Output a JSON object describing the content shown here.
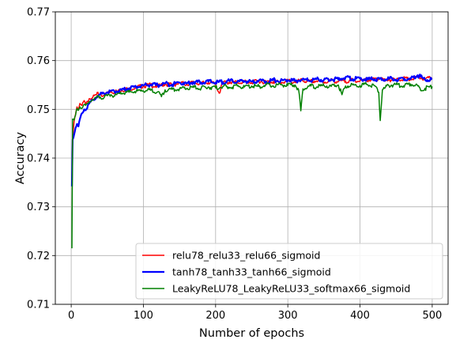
{
  "chart_data": {
    "type": "line",
    "xlabel": "Number of epochs",
    "ylabel": "Accuracy",
    "xlim": [
      -22,
      522
    ],
    "ylim": [
      0.71,
      0.77
    ],
    "xticks": [
      0,
      100,
      200,
      300,
      400,
      500
    ],
    "xtick_labels": [
      "0",
      "100",
      "200",
      "300",
      "400",
      "500"
    ],
    "yticks": [
      0.71,
      0.72,
      0.73,
      0.74,
      0.75,
      0.76,
      0.77
    ],
    "ytick_labels": [
      "0.71",
      "0.72",
      "0.73",
      "0.74",
      "0.75",
      "0.76",
      "0.77"
    ],
    "grid": true,
    "legend_position": "lower-right",
    "series": [
      {
        "name": "relu78_relu33_relu66_sigmoid",
        "color": "#ff0000",
        "line_width": 1.5,
        "points": [
          [
            1,
            0.7352
          ],
          [
            2,
            0.744
          ],
          [
            4,
            0.7475
          ],
          [
            6,
            0.749
          ],
          [
            8,
            0.7505
          ],
          [
            10,
            0.75
          ],
          [
            12,
            0.7512
          ],
          [
            15,
            0.7508
          ],
          [
            18,
            0.7518
          ],
          [
            20,
            0.751
          ],
          [
            25,
            0.7522
          ],
          [
            30,
            0.7525
          ],
          [
            35,
            0.753
          ],
          [
            40,
            0.7532
          ],
          [
            45,
            0.7528
          ],
          [
            50,
            0.7535
          ],
          [
            55,
            0.7538
          ],
          [
            60,
            0.7535
          ],
          [
            70,
            0.754
          ],
          [
            80,
            0.7542
          ],
          [
            90,
            0.7545
          ],
          [
            100,
            0.7548
          ],
          [
            110,
            0.755
          ],
          [
            120,
            0.7547
          ],
          [
            130,
            0.7552
          ],
          [
            140,
            0.755
          ],
          [
            150,
            0.7554
          ],
          [
            160,
            0.7552
          ],
          [
            170,
            0.7555
          ],
          [
            180,
            0.7553
          ],
          [
            190,
            0.7556
          ],
          [
            200,
            0.7552
          ],
          [
            205,
            0.7533
          ],
          [
            210,
            0.7554
          ],
          [
            220,
            0.7556
          ],
          [
            230,
            0.7555
          ],
          [
            240,
            0.7557
          ],
          [
            250,
            0.7555
          ],
          [
            260,
            0.7558
          ],
          [
            270,
            0.7556
          ],
          [
            280,
            0.7557
          ],
          [
            290,
            0.7555
          ],
          [
            300,
            0.7558
          ],
          [
            310,
            0.7556
          ],
          [
            320,
            0.7559
          ],
          [
            330,
            0.7557
          ],
          [
            340,
            0.7558
          ],
          [
            350,
            0.7556
          ],
          [
            360,
            0.7559
          ],
          [
            370,
            0.7557
          ],
          [
            380,
            0.7558
          ],
          [
            390,
            0.756
          ],
          [
            400,
            0.7558
          ],
          [
            410,
            0.756
          ],
          [
            420,
            0.7562
          ],
          [
            430,
            0.7565
          ],
          [
            435,
            0.7558
          ],
          [
            440,
            0.7561
          ],
          [
            450,
            0.756
          ],
          [
            460,
            0.7563
          ],
          [
            470,
            0.7561
          ],
          [
            480,
            0.7566
          ],
          [
            490,
            0.7562
          ],
          [
            500,
            0.7564
          ]
        ]
      },
      {
        "name": "tanh78_tanh33_tanh66_sigmoid",
        "color": "#0000ff",
        "line_width": 2.2,
        "points": [
          [
            1,
            0.7342
          ],
          [
            2,
            0.7438
          ],
          [
            4,
            0.7448
          ],
          [
            6,
            0.7462
          ],
          [
            8,
            0.747
          ],
          [
            10,
            0.7465
          ],
          [
            12,
            0.748
          ],
          [
            15,
            0.7492
          ],
          [
            18,
            0.75
          ],
          [
            20,
            0.7498
          ],
          [
            25,
            0.7512
          ],
          [
            30,
            0.752
          ],
          [
            35,
            0.7525
          ],
          [
            40,
            0.753
          ],
          [
            45,
            0.7533
          ],
          [
            50,
            0.7535
          ],
          [
            55,
            0.7538
          ],
          [
            60,
            0.7536
          ],
          [
            70,
            0.754
          ],
          [
            80,
            0.7543
          ],
          [
            90,
            0.7546
          ],
          [
            100,
            0.7549
          ],
          [
            110,
            0.7551
          ],
          [
            120,
            0.7549
          ],
          [
            130,
            0.7553
          ],
          [
            140,
            0.7551
          ],
          [
            150,
            0.7555
          ],
          [
            160,
            0.7553
          ],
          [
            170,
            0.7556
          ],
          [
            180,
            0.7555
          ],
          [
            190,
            0.7557
          ],
          [
            200,
            0.7555
          ],
          [
            210,
            0.7556
          ],
          [
            220,
            0.7558
          ],
          [
            230,
            0.7556
          ],
          [
            240,
            0.7558
          ],
          [
            250,
            0.7557
          ],
          [
            260,
            0.7559
          ],
          [
            270,
            0.7557
          ],
          [
            280,
            0.756
          ],
          [
            290,
            0.7558
          ],
          [
            300,
            0.756
          ],
          [
            310,
            0.7558
          ],
          [
            320,
            0.7561
          ],
          [
            330,
            0.7559
          ],
          [
            340,
            0.7562
          ],
          [
            350,
            0.756
          ],
          [
            360,
            0.7562
          ],
          [
            370,
            0.7561
          ],
          [
            380,
            0.7566
          ],
          [
            390,
            0.7562
          ],
          [
            400,
            0.7563
          ],
          [
            410,
            0.7561
          ],
          [
            420,
            0.7562
          ],
          [
            430,
            0.756
          ],
          [
            440,
            0.7563
          ],
          [
            450,
            0.7561
          ],
          [
            460,
            0.7564
          ],
          [
            470,
            0.7562
          ],
          [
            480,
            0.757
          ],
          [
            490,
            0.7561
          ],
          [
            500,
            0.7562
          ]
        ]
      },
      {
        "name": "LeakyReLU78_LeakyReLU33_softmax66_sigmoid",
        "color": "#008000",
        "line_width": 1.5,
        "points": [
          [
            1,
            0.7215
          ],
          [
            2,
            0.748
          ],
          [
            4,
            0.7478
          ],
          [
            6,
            0.7488
          ],
          [
            8,
            0.7502
          ],
          [
            10,
            0.7498
          ],
          [
            12,
            0.7505
          ],
          [
            15,
            0.7502
          ],
          [
            18,
            0.751
          ],
          [
            20,
            0.7508
          ],
          [
            25,
            0.7516
          ],
          [
            30,
            0.752
          ],
          [
            35,
            0.7524
          ],
          [
            40,
            0.7526
          ],
          [
            45,
            0.7523
          ],
          [
            50,
            0.7528
          ],
          [
            55,
            0.753
          ],
          [
            60,
            0.7527
          ],
          [
            70,
            0.7533
          ],
          [
            80,
            0.7535
          ],
          [
            90,
            0.7537
          ],
          [
            100,
            0.7538
          ],
          [
            110,
            0.7539
          ],
          [
            120,
            0.7536
          ],
          [
            125,
            0.7526
          ],
          [
            130,
            0.754
          ],
          [
            140,
            0.7541
          ],
          [
            150,
            0.7542
          ],
          [
            160,
            0.7543
          ],
          [
            170,
            0.7545
          ],
          [
            180,
            0.7543
          ],
          [
            190,
            0.7546
          ],
          [
            200,
            0.7544
          ],
          [
            210,
            0.7547
          ],
          [
            220,
            0.7545
          ],
          [
            230,
            0.7548
          ],
          [
            240,
            0.7546
          ],
          [
            250,
            0.7548
          ],
          [
            260,
            0.7547
          ],
          [
            270,
            0.755
          ],
          [
            280,
            0.7548
          ],
          [
            290,
            0.7551
          ],
          [
            300,
            0.7549
          ],
          [
            310,
            0.755
          ],
          [
            315,
            0.754
          ],
          [
            318,
            0.7497
          ],
          [
            321,
            0.7542
          ],
          [
            330,
            0.7548
          ],
          [
            340,
            0.7546
          ],
          [
            350,
            0.7549
          ],
          [
            360,
            0.7547
          ],
          [
            370,
            0.755
          ],
          [
            375,
            0.753
          ],
          [
            380,
            0.7548
          ],
          [
            390,
            0.755
          ],
          [
            400,
            0.7549
          ],
          [
            410,
            0.7551
          ],
          [
            420,
            0.7549
          ],
          [
            426,
            0.7535
          ],
          [
            428,
            0.7477
          ],
          [
            431,
            0.754
          ],
          [
            440,
            0.7549
          ],
          [
            450,
            0.7551
          ],
          [
            460,
            0.7548
          ],
          [
            470,
            0.7552
          ],
          [
            480,
            0.7548
          ],
          [
            485,
            0.7538
          ],
          [
            490,
            0.7543
          ],
          [
            500,
            0.7547
          ]
        ]
      }
    ]
  }
}
